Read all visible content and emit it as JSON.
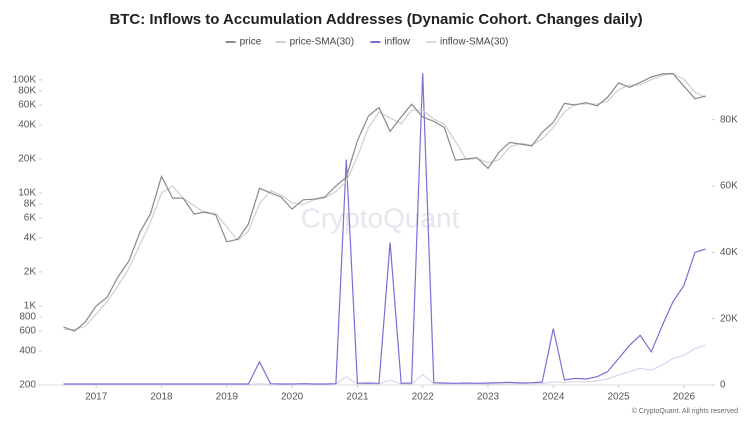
{
  "chart_data": {
    "type": "line",
    "title": "BTC: Inflows to Accumulation Addresses (Dynamic Cohort. Changes daily)",
    "watermark": "CryptoQuant",
    "footer": "© CryptoQuant. All rights reserved",
    "x": [
      2016.5,
      2016.67,
      2016.83,
      2017.0,
      2017.17,
      2017.33,
      2017.5,
      2017.67,
      2017.83,
      2018.0,
      2018.17,
      2018.33,
      2018.5,
      2018.67,
      2018.83,
      2019.0,
      2019.17,
      2019.33,
      2019.5,
      2019.67,
      2019.83,
      2020.0,
      2020.17,
      2020.33,
      2020.5,
      2020.67,
      2020.83,
      2021.0,
      2021.17,
      2021.33,
      2021.5,
      2021.67,
      2021.83,
      2022.0,
      2022.17,
      2022.33,
      2022.5,
      2022.67,
      2022.83,
      2023.0,
      2023.17,
      2023.33,
      2023.5,
      2023.67,
      2023.83,
      2024.0,
      2024.17,
      2024.33,
      2024.5,
      2024.67,
      2024.83,
      2025.0,
      2025.17,
      2025.33,
      2025.5,
      2025.67,
      2025.83,
      2026.0,
      2026.17,
      2026.33
    ],
    "series": [
      {
        "name": "price",
        "color": "#8a8a8a",
        "axis": "y",
        "values": [
          650,
          600,
          720,
          1000,
          1200,
          1800,
          2500,
          4500,
          6500,
          14000,
          9000,
          9000,
          6500,
          6800,
          6400,
          3700,
          3900,
          5300,
          11000,
          10000,
          9200,
          7200,
          8700,
          8800,
          9200,
          11500,
          13800,
          29000,
          48000,
          57000,
          35000,
          47000,
          61000,
          47000,
          43000,
          38000,
          19500,
          20000,
          20500,
          16500,
          23000,
          28000,
          27000,
          26000,
          34500,
          42000,
          62000,
          60000,
          63000,
          59000,
          70000,
          94000,
          86000,
          95000,
          106000,
          113000,
          114000,
          88000,
          68000,
          72000
        ]
      },
      {
        "name": "price-SMA(30)",
        "color": "#cfcfcf",
        "axis": "y",
        "values": [
          620,
          620,
          660,
          850,
          1100,
          1500,
          2150,
          3500,
          5500,
          10000,
          11500,
          9000,
          7700,
          6600,
          6600,
          5000,
          3800,
          4600,
          8000,
          10500,
          9600,
          8200,
          7900,
          8700,
          9000,
          10300,
          12600,
          21000,
          38000,
          52000,
          46000,
          41000,
          54000,
          54000,
          45000,
          40500,
          28500,
          19700,
          20200,
          18500,
          19700,
          25500,
          27500,
          26500,
          30000,
          38000,
          52000,
          61000,
          61500,
          61000,
          64500,
          82000,
          90000,
          90500,
          100500,
          109500,
          113500,
          101000,
          78000,
          70000
        ]
      },
      {
        "name": "inflow",
        "color": "#7b6fd6",
        "axis": "y2",
        "values": [
          300,
          300,
          300,
          300,
          300,
          300,
          300,
          300,
          300,
          300,
          300,
          300,
          300,
          300,
          300,
          300,
          300,
          300,
          7000,
          400,
          300,
          300,
          400,
          300,
          300,
          400,
          68000,
          500,
          600,
          500,
          43000,
          500,
          600,
          94000,
          700,
          600,
          500,
          600,
          500,
          600,
          700,
          800,
          600,
          700,
          900,
          17000,
          1500,
          2000,
          1800,
          2500,
          4000,
          8000,
          12000,
          15000,
          10000,
          18000,
          25000,
          30000,
          40000,
          41000
        ]
      },
      {
        "name": "inflow-SMA(30)",
        "color": "#d9d6ee",
        "axis": "y2",
        "values": [
          100,
          100,
          100,
          100,
          100,
          100,
          100,
          100,
          100,
          100,
          100,
          100,
          100,
          100,
          100,
          100,
          100,
          100,
          400,
          200,
          150,
          150,
          200,
          150,
          150,
          200,
          2500,
          300,
          300,
          300,
          1500,
          300,
          300,
          3200,
          400,
          300,
          300,
          300,
          300,
          300,
          350,
          400,
          350,
          400,
          450,
          900,
          800,
          1000,
          1000,
          1200,
          1800,
          3000,
          4000,
          5000,
          4500,
          6000,
          8000,
          9000,
          11000,
          12000
        ]
      }
    ],
    "xlim": [
      2016.17,
      2026.43
    ],
    "xticks": [
      2017,
      2018,
      2019,
      2020,
      2021,
      2022,
      2023,
      2024,
      2025,
      2026
    ],
    "ylim": [
      200,
      150000
    ],
    "log_y": true,
    "yticks": [
      200,
      400,
      600,
      800,
      {
        "value": 1000,
        "label": "1K"
      },
      {
        "value": 2000,
        "label": "2K"
      },
      {
        "value": 4000,
        "label": "4K"
      },
      {
        "value": 6000,
        "label": "6K"
      },
      {
        "value": 8000,
        "label": "8K"
      },
      {
        "value": 10000,
        "label": "10K"
      },
      {
        "value": 20000,
        "label": "20K"
      },
      {
        "value": 40000,
        "label": "40K"
      },
      {
        "value": 60000,
        "label": "60K"
      },
      {
        "value": 80000,
        "label": "80K"
      },
      {
        "value": 100000,
        "label": "100K"
      }
    ],
    "y2lim": [
      0,
      98000
    ],
    "y2ticks": [
      0,
      {
        "value": 20000,
        "label": "20K"
      },
      {
        "value": 40000,
        "label": "40K"
      },
      {
        "value": 60000,
        "label": "60K"
      },
      {
        "value": 80000,
        "label": "80K"
      }
    ],
    "legend": "top"
  }
}
